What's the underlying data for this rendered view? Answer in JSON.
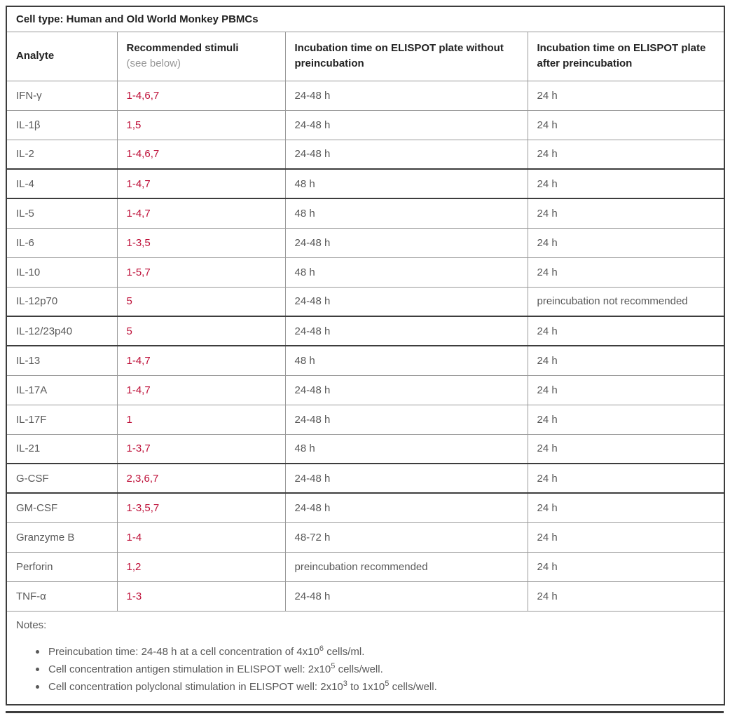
{
  "colors": {
    "stimuli_red": "#be0f38"
  },
  "table": {
    "title": "Cell type: Human and Old World Monkey PBMCs",
    "columns": [
      {
        "label": "Analyte"
      },
      {
        "label": "Recommended stimuli",
        "sublabel": "(see below)"
      },
      {
        "label": "Incubation time on ELISPOT plate without preincubation"
      },
      {
        "label": "Incubation time on ELISPOT plate after preincubation"
      }
    ],
    "rows": [
      {
        "analyte": "IFN-γ",
        "stimuli": "1-4,6,7",
        "without": "24-48 h",
        "after": "24 h",
        "group_end": false
      },
      {
        "analyte": "IL-1β",
        "stimuli": "1,5",
        "without": "24-48 h",
        "after": "24 h",
        "group_end": false
      },
      {
        "analyte": "IL-2",
        "stimuli": "1-4,6,7",
        "without": "24-48 h",
        "after": "24 h",
        "group_end": true
      },
      {
        "analyte": "IL-4",
        "stimuli": "1-4,7",
        "without": "48 h",
        "after": "24 h",
        "group_end": true
      },
      {
        "analyte": "IL-5",
        "stimuli": "1-4,7",
        "without": "48 h",
        "after": "24 h",
        "group_end": false
      },
      {
        "analyte": "IL-6",
        "stimuli": "1-3,5",
        "without": "24-48 h",
        "after": "24 h",
        "group_end": false
      },
      {
        "analyte": "IL-10",
        "stimuli": "1-5,7",
        "without": "48 h",
        "after": "24 h",
        "group_end": false
      },
      {
        "analyte": "IL-12p70",
        "stimuli": "5",
        "without": "24-48 h",
        "after": "preincubation not recommended",
        "group_end": true
      },
      {
        "analyte": "IL-12/23p40",
        "stimuli": "5",
        "without": "24-48 h",
        "after": "24 h",
        "group_end": true
      },
      {
        "analyte": "IL-13",
        "stimuli": "1-4,7",
        "without": "48 h",
        "after": "24 h",
        "group_end": false
      },
      {
        "analyte": "IL-17A",
        "stimuli": "1-4,7",
        "without": "24-48 h",
        "after": "24 h",
        "group_end": false
      },
      {
        "analyte": "IL-17F",
        "stimuli": "1",
        "without": "24-48 h",
        "after": "24 h",
        "group_end": false
      },
      {
        "analyte": "IL-21",
        "stimuli": "1-3,7",
        "without": "48 h",
        "after": "24 h",
        "group_end": true
      },
      {
        "analyte": "G-CSF",
        "stimuli": "2,3,6,7",
        "without": "24-48 h",
        "after": "24 h",
        "group_end": true
      },
      {
        "analyte": "GM-CSF",
        "stimuli": "1-3,5,7",
        "without": "24-48 h",
        "after": "24 h",
        "group_end": false
      },
      {
        "analyte": "Granzyme B",
        "stimuli": "1-4",
        "without": "48-72 h",
        "after": "24 h",
        "group_end": false
      },
      {
        "analyte": "Perforin",
        "stimuli": "1,2",
        "without": "preincubation recommended",
        "after": "24 h",
        "group_end": false
      },
      {
        "analyte": "TNF-α",
        "stimuli": "1-3",
        "without": "24-48 h",
        "after": "24 h",
        "group_end": false
      }
    ]
  },
  "notes": {
    "label": "Notes:",
    "items": [
      [
        "Preincubation time: 24-48 h at a cell concentration of 4x10",
        {
          "sup": "6"
        },
        " cells/ml."
      ],
      [
        "Cell concentration antigen stimulation in ELISPOT well: 2x10",
        {
          "sup": "5"
        },
        " cells/well."
      ],
      [
        "Cell concentration polyclonal stimulation in ELISPOT well: 2x10",
        {
          "sup": "3"
        },
        " to 1x10",
        {
          "sup": "5"
        },
        " cells/well."
      ]
    ]
  }
}
